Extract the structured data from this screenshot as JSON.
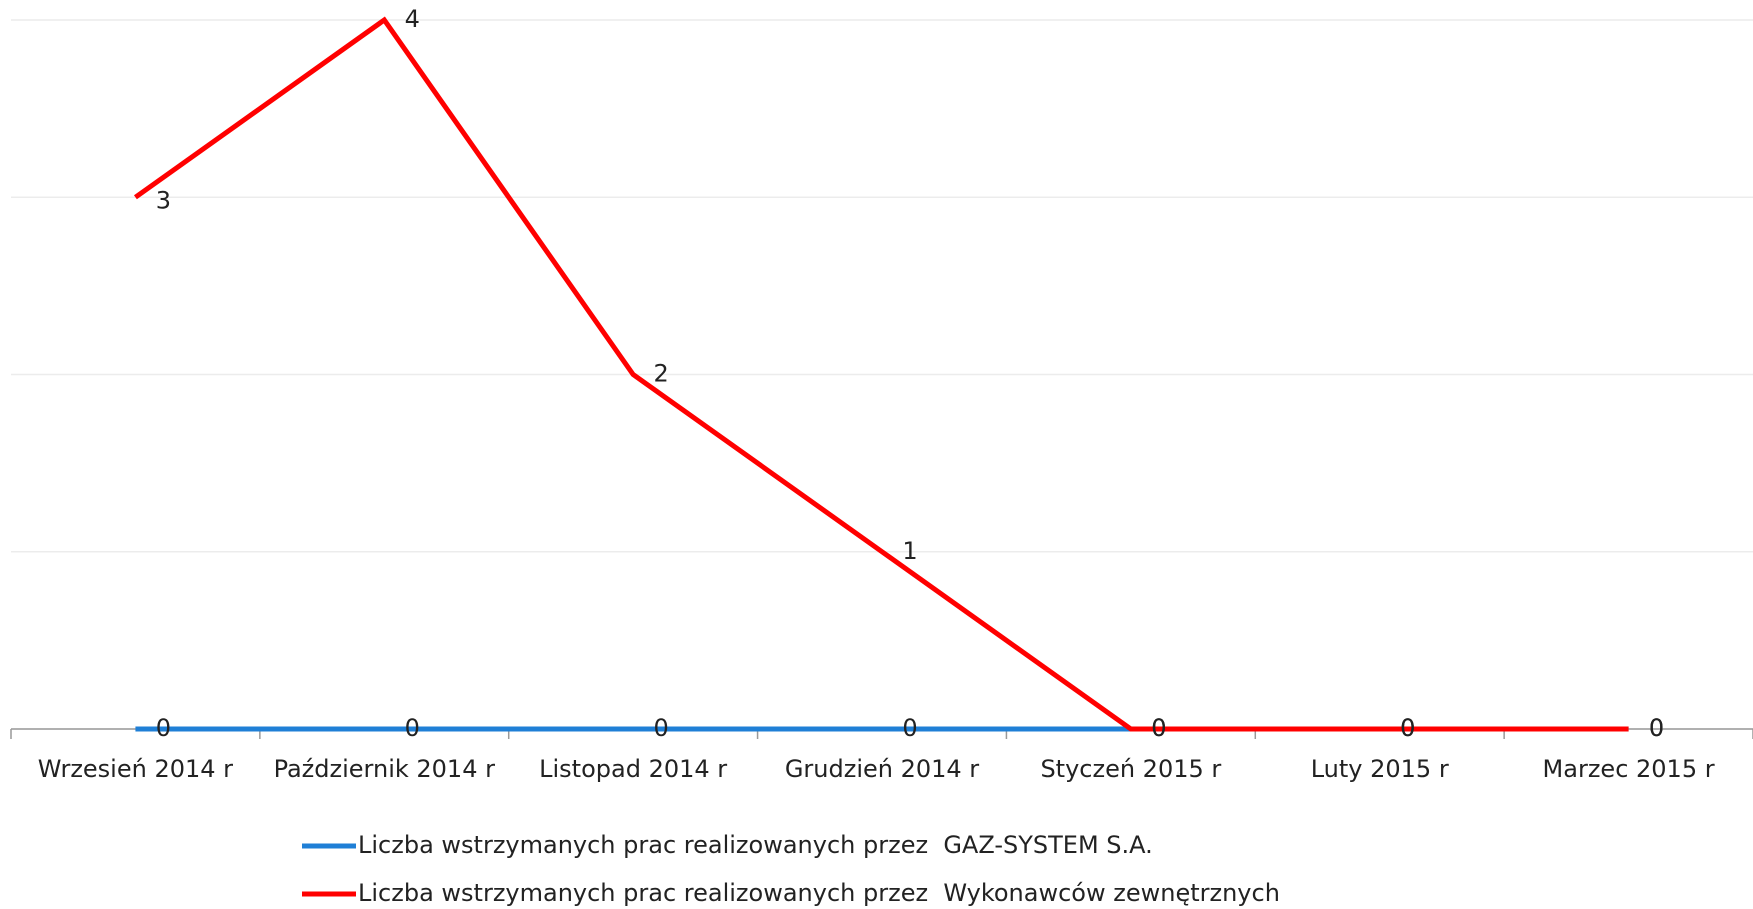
{
  "chart_data": {
    "type": "line",
    "categories": [
      "Wrzesień 2014 r",
      "Październik 2014 r",
      "Listopad 2014 r",
      "Grudzień 2014 r",
      "Styczeń 2015 r",
      "Luty 2015 r",
      "Marzec 2015 r"
    ],
    "series": [
      {
        "name": "Liczba wstrzymanych prac realizowanych przez  GAZ-SYSTEM S.A.",
        "color": "#1f7fd6",
        "values": [
          0,
          0,
          0,
          0,
          0,
          0,
          0
        ]
      },
      {
        "name": "Liczba wstrzymanych prac realizowanych przez  Wykonawców zewnętrznych",
        "color": "#ff0000",
        "values": [
          3,
          4,
          2,
          1,
          0,
          0,
          0
        ]
      }
    ],
    "ylim": [
      0,
      4
    ],
    "yticks": [
      0,
      1,
      2,
      3,
      4
    ],
    "grid": true,
    "legend": "bottom"
  }
}
